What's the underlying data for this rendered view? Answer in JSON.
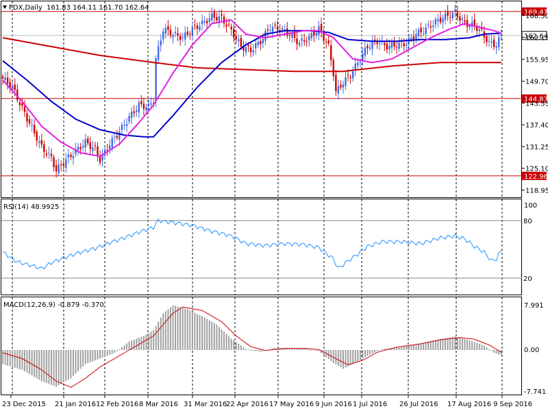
{
  "header": {
    "symbol": "FDX,Daily",
    "ohlc": "161.83 164.11 161.70 162.64",
    "menu_icon": "triangle-down-icon"
  },
  "colors": {
    "up": "#4169E1",
    "down": "#CC0000",
    "ma_fast": "#E020E0",
    "ma_mid": "#0000CC",
    "ma_slow": "#CC0000",
    "level_line": "#CC0000",
    "rsi_line": "#1E90FF",
    "macd_hist": "#A0A0A0",
    "macd_signal": "#CC0000",
    "frame": "#000000",
    "vgrid": "#000000"
  },
  "chart_data": [
    {
      "type": "candlestick",
      "name": "price",
      "yticks": [
        "168.30",
        "162.15",
        "155.95",
        "149.70",
        "143.55",
        "137.40",
        "131.25",
        "125.10",
        "118.95"
      ],
      "ylim": [
        117.5,
        171.5
      ],
      "levels": [
        {
          "value": 169.41,
          "label": "169.41"
        },
        {
          "value": 144.83,
          "label": "144.83"
        },
        {
          "value": 122.96,
          "label": "122.96"
        }
      ],
      "current": {
        "value": 162.64,
        "label": "162.64"
      },
      "x_labels": [
        "23 Dec 2015",
        "21 Jan 2016",
        "12 Feb 2016",
        "8 Mar 2016",
        "31 Mar 2016",
        "22 Apr 2016",
        "17 May 2016",
        "9 Jun 2016",
        "1 Jul 2016",
        "26 Jul 2016",
        "17 Aug 2016",
        "9 Sep 2016"
      ],
      "anchors": [
        {
          "i": 0,
          "c": 150.5
        },
        {
          "i": 4,
          "c": 148.0
        },
        {
          "i": 8,
          "c": 142.0
        },
        {
          "i": 12,
          "c": 136.5
        },
        {
          "i": 16,
          "c": 131.0
        },
        {
          "i": 20,
          "c": 128.0
        },
        {
          "i": 22,
          "c": 124.5
        },
        {
          "i": 26,
          "c": 127.5
        },
        {
          "i": 30,
          "c": 130.0
        },
        {
          "i": 34,
          "c": 132.5
        },
        {
          "i": 38,
          "c": 130.5
        },
        {
          "i": 40,
          "c": 127.5
        },
        {
          "i": 44,
          "c": 132.0
        },
        {
          "i": 48,
          "c": 135.5
        },
        {
          "i": 52,
          "c": 139.5
        },
        {
          "i": 56,
          "c": 143.0
        },
        {
          "i": 60,
          "c": 142.5
        },
        {
          "i": 62,
          "c": 144.5
        },
        {
          "i": 63,
          "c": 156.0
        },
        {
          "i": 66,
          "c": 164.5
        },
        {
          "i": 70,
          "c": 163.0
        },
        {
          "i": 74,
          "c": 162.0
        },
        {
          "i": 78,
          "c": 164.5
        },
        {
          "i": 82,
          "c": 166.0
        },
        {
          "i": 86,
          "c": 168.0
        },
        {
          "i": 90,
          "c": 167.5
        },
        {
          "i": 94,
          "c": 164.0
        },
        {
          "i": 98,
          "c": 159.5
        },
        {
          "i": 102,
          "c": 158.5
        },
        {
          "i": 106,
          "c": 161.0
        },
        {
          "i": 110,
          "c": 165.0
        },
        {
          "i": 114,
          "c": 164.5
        },
        {
          "i": 118,
          "c": 163.0
        },
        {
          "i": 122,
          "c": 160.5
        },
        {
          "i": 126,
          "c": 162.0
        },
        {
          "i": 130,
          "c": 164.5
        },
        {
          "i": 134,
          "c": 159.5
        },
        {
          "i": 136,
          "c": 152.0
        },
        {
          "i": 137,
          "c": 146.5
        },
        {
          "i": 140,
          "c": 149.5
        },
        {
          "i": 143,
          "c": 151.5
        },
        {
          "i": 146,
          "c": 155.0
        },
        {
          "i": 150,
          "c": 159.5
        },
        {
          "i": 154,
          "c": 161.0
        },
        {
          "i": 158,
          "c": 159.5
        },
        {
          "i": 162,
          "c": 160.0
        },
        {
          "i": 166,
          "c": 160.5
        },
        {
          "i": 170,
          "c": 163.0
        },
        {
          "i": 174,
          "c": 164.5
        },
        {
          "i": 178,
          "c": 166.5
        },
        {
          "i": 182,
          "c": 168.0
        },
        {
          "i": 186,
          "c": 169.0
        },
        {
          "i": 190,
          "c": 166.0
        },
        {
          "i": 194,
          "c": 165.5
        },
        {
          "i": 197,
          "c": 163.5
        },
        {
          "i": 200,
          "c": 160.5
        },
        {
          "i": 203,
          "c": 160.0
        },
        {
          "i": 205,
          "c": 162.64
        }
      ],
      "ma_fast": [
        [
          0,
          150
        ],
        [
          8,
          144
        ],
        [
          16,
          137
        ],
        [
          24,
          132.5
        ],
        [
          32,
          129.5
        ],
        [
          40,
          128.5
        ],
        [
          48,
          132
        ],
        [
          56,
          138
        ],
        [
          62,
          143
        ],
        [
          70,
          152
        ],
        [
          78,
          160
        ],
        [
          86,
          166
        ],
        [
          94,
          167
        ],
        [
          100,
          163
        ],
        [
          108,
          162
        ],
        [
          116,
          163
        ],
        [
          124,
          164
        ],
        [
          130,
          164
        ],
        [
          136,
          162
        ],
        [
          144,
          156
        ],
        [
          152,
          155
        ],
        [
          160,
          156
        ],
        [
          168,
          159
        ],
        [
          176,
          162
        ],
        [
          184,
          164.5
        ],
        [
          190,
          166
        ],
        [
          196,
          165
        ],
        [
          202,
          164
        ],
        [
          205,
          163.2
        ]
      ],
      "ma_mid": [
        [
          0,
          155.5
        ],
        [
          10,
          150
        ],
        [
          20,
          144
        ],
        [
          30,
          139
        ],
        [
          40,
          136
        ],
        [
          50,
          134.5
        ],
        [
          58,
          134
        ],
        [
          62,
          134
        ],
        [
          70,
          140
        ],
        [
          80,
          148
        ],
        [
          90,
          155
        ],
        [
          100,
          160
        ],
        [
          108,
          163
        ],
        [
          116,
          164
        ],
        [
          126,
          164
        ],
        [
          134,
          163.5
        ],
        [
          142,
          161.5
        ],
        [
          152,
          161
        ],
        [
          162,
          161
        ],
        [
          172,
          161.5
        ],
        [
          182,
          161.5
        ],
        [
          192,
          162
        ],
        [
          198,
          163
        ],
        [
          205,
          163.3
        ]
      ],
      "ma_slow": [
        [
          0,
          162
        ],
        [
          20,
          159.5
        ],
        [
          40,
          157
        ],
        [
          62,
          155
        ],
        [
          80,
          153.5
        ],
        [
          100,
          153
        ],
        [
          120,
          152.5
        ],
        [
          140,
          152.5
        ],
        [
          160,
          154
        ],
        [
          180,
          155
        ],
        [
          205,
          155
        ]
      ]
    },
    {
      "type": "line",
      "name": "RSI(14)",
      "label": "RSI(14) 48.9925",
      "yticks": [
        "100",
        "80",
        "20"
      ],
      "ylim": [
        0,
        100
      ],
      "levels": [
        80,
        20
      ],
      "series": [
        [
          0,
          47
        ],
        [
          6,
          37
        ],
        [
          12,
          33
        ],
        [
          16,
          30
        ],
        [
          20,
          36
        ],
        [
          26,
          42
        ],
        [
          32,
          47
        ],
        [
          38,
          51
        ],
        [
          44,
          57
        ],
        [
          50,
          62
        ],
        [
          56,
          68
        ],
        [
          62,
          73
        ],
        [
          64,
          80
        ],
        [
          70,
          78
        ],
        [
          78,
          75
        ],
        [
          86,
          69
        ],
        [
          94,
          64
        ],
        [
          100,
          56
        ],
        [
          108,
          54
        ],
        [
          116,
          56
        ],
        [
          124,
          55
        ],
        [
          130,
          52
        ],
        [
          136,
          40
        ],
        [
          138,
          30
        ],
        [
          142,
          38
        ],
        [
          146,
          45
        ],
        [
          150,
          53
        ],
        [
          156,
          58
        ],
        [
          164,
          58
        ],
        [
          172,
          56
        ],
        [
          180,
          62
        ],
        [
          186,
          64
        ],
        [
          190,
          61
        ],
        [
          194,
          53
        ],
        [
          198,
          47
        ],
        [
          201,
          38
        ],
        [
          203,
          40
        ],
        [
          205,
          49
        ]
      ]
    },
    {
      "type": "histogram",
      "name": "MACD(12,26,9)",
      "label": "MACD(12,26,9) -0.879 -0.370",
      "yticks": [
        "7.991",
        "0.00",
        "-7.741"
      ],
      "ylim": [
        -7.741,
        7.991
      ],
      "hist": [
        [
          0,
          -2.5
        ],
        [
          8,
          -3.5
        ],
        [
          16,
          -5.5
        ],
        [
          22,
          -6.5
        ],
        [
          28,
          -5
        ],
        [
          34,
          -2.5
        ],
        [
          40,
          -1.5
        ],
        [
          46,
          -0.5
        ],
        [
          52,
          1.5
        ],
        [
          58,
          2.5
        ],
        [
          62,
          3.5
        ],
        [
          66,
          6.5
        ],
        [
          70,
          7.9
        ],
        [
          76,
          7.2
        ],
        [
          82,
          6
        ],
        [
          88,
          4.5
        ],
        [
          94,
          2
        ],
        [
          100,
          0.2
        ],
        [
          106,
          -0.3
        ],
        [
          112,
          0.4
        ],
        [
          118,
          0.3
        ],
        [
          124,
          0.3
        ],
        [
          130,
          -0.2
        ],
        [
          136,
          -2.3
        ],
        [
          140,
          -3.3
        ],
        [
          144,
          -2.5
        ],
        [
          150,
          -1
        ],
        [
          156,
          0.2
        ],
        [
          164,
          0.5
        ],
        [
          172,
          1.2
        ],
        [
          180,
          2
        ],
        [
          186,
          2.4
        ],
        [
          192,
          1.7
        ],
        [
          198,
          0.8
        ],
        [
          202,
          -0.5
        ],
        [
          205,
          -0.88
        ]
      ],
      "signal": [
        [
          0,
          -0.5
        ],
        [
          8,
          -1.5
        ],
        [
          16,
          -3.5
        ],
        [
          22,
          -5.5
        ],
        [
          28,
          -6.6
        ],
        [
          34,
          -5
        ],
        [
          40,
          -3
        ],
        [
          46,
          -1.5
        ],
        [
          52,
          0
        ],
        [
          58,
          1.5
        ],
        [
          62,
          2.5
        ],
        [
          66,
          4.5
        ],
        [
          70,
          6.5
        ],
        [
          74,
          7.6
        ],
        [
          82,
          7
        ],
        [
          90,
          5
        ],
        [
          96,
          2.5
        ],
        [
          102,
          0.6
        ],
        [
          108,
          -0.1
        ],
        [
          116,
          0.3
        ],
        [
          124,
          0.3
        ],
        [
          130,
          0.1
        ],
        [
          136,
          -1.3
        ],
        [
          142,
          -2.6
        ],
        [
          148,
          -1.8
        ],
        [
          154,
          -0.4
        ],
        [
          162,
          0.5
        ],
        [
          172,
          1.1
        ],
        [
          180,
          1.8
        ],
        [
          188,
          2.2
        ],
        [
          194,
          1.9
        ],
        [
          200,
          0.9
        ],
        [
          205,
          -0.37
        ]
      ]
    }
  ]
}
